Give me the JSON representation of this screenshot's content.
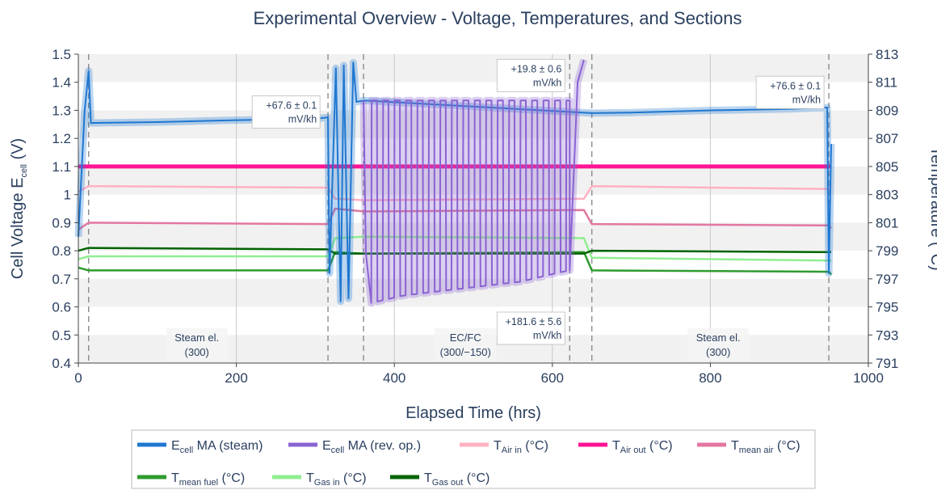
{
  "chart_data": {
    "type": "line",
    "title": "Experimental Overview - Voltage, Temperatures, and Sections",
    "xlabel": "Elapsed Time (hrs)",
    "ylabel": {
      "main": "Cell Voltage E",
      "sub": "cell",
      "unit": " (V)"
    },
    "y2label": "Temperature (°C)",
    "xlim": [
      0,
      1000
    ],
    "ylim": [
      0.4,
      1.5
    ],
    "y2lim": [
      791,
      813
    ],
    "xticks": [
      0,
      200,
      400,
      600,
      800,
      1000
    ],
    "yticks": [
      0.4,
      0.5,
      0.6,
      0.7,
      0.8,
      0.9,
      1,
      1.1,
      1.2,
      1.3,
      1.4,
      1.5
    ],
    "y2ticks": [
      791,
      793,
      795,
      797,
      799,
      801,
      803,
      805,
      807,
      809,
      811,
      813
    ],
    "grid": true,
    "legend_position": "bottom",
    "section_boundaries": [
      13,
      316,
      361,
      622,
      650,
      950
    ],
    "sections": [
      {
        "label_line1": "Steam el.",
        "label_line2": "(300)",
        "x": 150
      },
      {
        "label_line1": "EC/FC",
        "label_line2": "(300/−150)",
        "x": 490
      },
      {
        "label_line1": "Steam el.",
        "label_line2": "(300)",
        "x": 810
      }
    ],
    "annotations": [
      {
        "line1": "+67.6 ± 0.1",
        "line2": "mV/kh",
        "x": 310,
        "y": 1.34
      },
      {
        "line1": "+19.8 ± 0.6",
        "line2": "mV/kh",
        "x": 620,
        "y": 1.47
      },
      {
        "line1": "+181.6 ± 5.6",
        "line2": "mV/kh",
        "x": 620,
        "y": 0.57
      },
      {
        "line1": "+76.6 ± 0.1",
        "line2": "mV/kh",
        "x": 948,
        "y": 1.41
      }
    ],
    "series": [
      {
        "name": "E",
        "sub": "cell",
        "suffix": " MA (steam)",
        "axis": "left",
        "color": "#1f77d0",
        "x": [
          0,
          8,
          13,
          16,
          100,
          200,
          300,
          316,
          318,
          326,
          332,
          336,
          342,
          348,
          352,
          361,
          650,
          700,
          800,
          900,
          948,
          950,
          953
        ],
        "y": [
          0.85,
          1.3,
          1.44,
          1.255,
          1.258,
          1.265,
          1.27,
          1.275,
          0.72,
          1.45,
          0.62,
          1.46,
          0.63,
          1.47,
          1.33,
          1.335,
          1.29,
          1.292,
          1.3,
          1.305,
          1.31,
          0.72,
          1.18
        ]
      },
      {
        "name": "E",
        "sub": "cell",
        "suffix": " MA (rev. op.)",
        "axis": "left",
        "color": "#8a63d2",
        "x": [
          361,
          365,
          380,
          395,
          410,
          425,
          440,
          455,
          470,
          485,
          500,
          515,
          530,
          545,
          560,
          575,
          590,
          605,
          622,
          632,
          640
        ],
        "y": [
          1.335,
          0.61,
          0.62,
          0.63,
          0.64,
          0.645,
          0.65,
          0.655,
          0.66,
          0.665,
          0.67,
          0.675,
          0.68,
          0.685,
          0.69,
          0.7,
          0.71,
          0.72,
          0.73,
          1.4,
          1.48
        ],
        "cycle_period": 14.5,
        "cycle_high": 1.335
      },
      {
        "name": "T",
        "sub": "Air in",
        "suffix": " (°C)",
        "axis": "right",
        "color": "#ffb1c1",
        "x": [
          0,
          13,
          316,
          325,
          361,
          640,
          650,
          950,
          953
        ],
        "y": [
          803.2,
          803.6,
          803.5,
          802.7,
          802.6,
          802.7,
          803.6,
          803.4,
          803.6
        ]
      },
      {
        "name": "T",
        "sub": "Air out",
        "suffix": " (°C)",
        "axis": "right",
        "color": "#ff1493",
        "x": [
          0,
          953
        ],
        "y": [
          805.0,
          805.0
        ]
      },
      {
        "name": "T",
        "sub": "mean air",
        "suffix": " (°C)",
        "axis": "right",
        "color": "#e377a1",
        "x": [
          0,
          13,
          316,
          325,
          361,
          640,
          650,
          950,
          953
        ],
        "y": [
          800.5,
          801.0,
          800.9,
          802.0,
          801.8,
          801.9,
          800.9,
          800.8,
          800.6
        ]
      },
      {
        "name": "T",
        "sub": "mean fuel",
        "suffix": " (°C)",
        "axis": "right",
        "color": "#2e9b2e",
        "x": [
          0,
          13,
          316,
          325,
          361,
          640,
          650,
          950,
          953
        ],
        "y": [
          797.8,
          797.6,
          797.6,
          798.9,
          798.8,
          798.9,
          797.6,
          797.5,
          797.3
        ]
      },
      {
        "name": "T",
        "sub": "Gas in",
        "suffix": " (°C)",
        "axis": "right",
        "color": "#90ee90",
        "x": [
          0,
          13,
          316,
          325,
          361,
          640,
          650,
          950,
          953
        ],
        "y": [
          798.4,
          798.6,
          798.6,
          799.9,
          800.0,
          799.9,
          798.5,
          798.3,
          798.3
        ]
      },
      {
        "name": "T",
        "sub": "Gas out",
        "suffix": " (°C)",
        "axis": "right",
        "color": "#006400",
        "x": [
          0,
          13,
          316,
          325,
          361,
          640,
          650,
          950,
          953
        ],
        "y": [
          799.0,
          799.2,
          799.1,
          798.8,
          798.8,
          798.8,
          799.0,
          798.9,
          798.9
        ]
      }
    ]
  }
}
